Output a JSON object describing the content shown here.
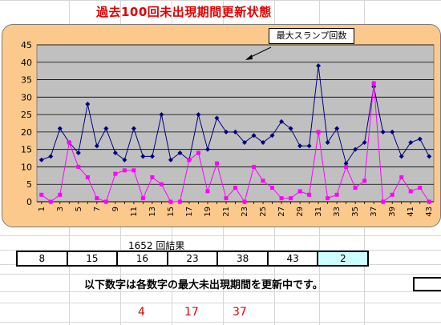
{
  "title": "過去100回未出現期間更新状態",
  "chart_data": {
    "type": "line",
    "x": [
      1,
      2,
      3,
      4,
      5,
      6,
      7,
      8,
      9,
      10,
      11,
      12,
      13,
      14,
      15,
      16,
      17,
      18,
      19,
      20,
      21,
      22,
      23,
      24,
      25,
      26,
      27,
      28,
      29,
      30,
      31,
      32,
      33,
      34,
      35,
      36,
      37,
      38,
      39,
      40,
      41,
      42,
      43
    ],
    "x_tick_labels": [
      "1",
      "3",
      "5",
      "7",
      "9",
      "11",
      "13",
      "15",
      "17",
      "19",
      "21",
      "23",
      "25",
      "27",
      "29",
      "31",
      "33",
      "35",
      "37",
      "39",
      "41",
      "43"
    ],
    "y_ticks": [
      0,
      5,
      10,
      15,
      20,
      25,
      30,
      35,
      40,
      45
    ],
    "ylim": [
      0,
      45
    ],
    "grid": true,
    "annotation": "最大スランプ回数",
    "series": [
      {
        "color": "#000080",
        "marker": "diamond",
        "values": [
          12,
          13,
          21,
          17,
          14,
          28,
          16,
          21,
          14,
          12,
          21,
          13,
          13,
          25,
          12,
          14,
          12,
          25,
          15,
          24,
          20,
          20,
          17,
          19,
          17,
          19,
          23,
          21,
          16,
          16,
          39,
          17,
          21,
          11,
          15,
          17,
          33,
          20,
          20,
          13,
          17,
          18,
          13
        ]
      },
      {
        "color": "#ff00ff",
        "marker": "square",
        "values": [
          2,
          0,
          2,
          17,
          10,
          7,
          1,
          0,
          8,
          9,
          9,
          1,
          7,
          5,
          0,
          0,
          12,
          14,
          3,
          11,
          1,
          4,
          0,
          10,
          6,
          4,
          1,
          1,
          3,
          2,
          20,
          1,
          2,
          10,
          4,
          6,
          34,
          0,
          2,
          7,
          3,
          4,
          0
        ]
      }
    ]
  },
  "results": {
    "caption": "1652 回結果",
    "numbers": [
      "8",
      "15",
      "16",
      "23",
      "38",
      "43",
      "2"
    ]
  },
  "note": "以下数字は各数字の最大未出現期間を更新中です。",
  "updated_numbers": [
    "4",
    "17",
    "37"
  ]
}
